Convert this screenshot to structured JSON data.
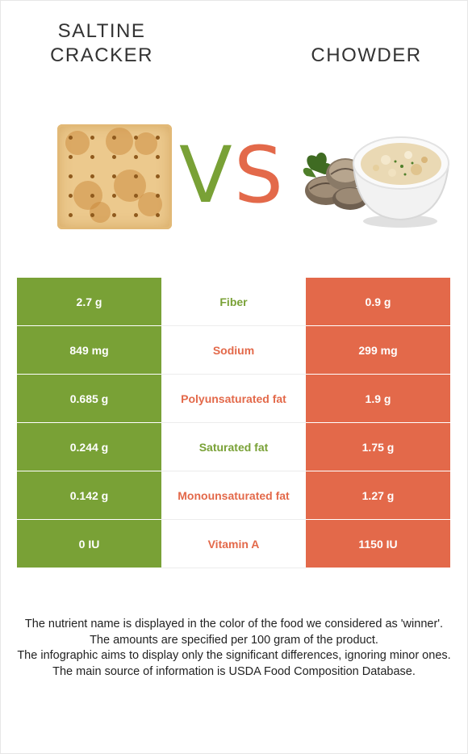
{
  "header": {
    "left_food": "SALTINE CRACKER",
    "left_food_line1": "SALTINE",
    "left_food_line2": "CRACKER",
    "right_food": "CHOWDER",
    "vs_v": "V",
    "vs_s": "S"
  },
  "colors": {
    "left_accent": "#79a136",
    "right_accent": "#e3694a"
  },
  "rows": [
    {
      "left": "2.7 g",
      "nutrient": "Fiber",
      "right": "0.9 g",
      "winner": "left"
    },
    {
      "left": "849 mg",
      "nutrient": "Sodium",
      "right": "299 mg",
      "winner": "right"
    },
    {
      "left": "0.685 g",
      "nutrient": "Polyunsaturated fat",
      "right": "1.9 g",
      "winner": "right"
    },
    {
      "left": "0.244 g",
      "nutrient": "Saturated fat",
      "right": "1.75 g",
      "winner": "left"
    },
    {
      "left": "0.142 g",
      "nutrient": "Monounsaturated fat",
      "right": "1.27 g",
      "winner": "right"
    },
    {
      "left": "0 IU",
      "nutrient": "Vitamin A",
      "right": "1150 IU",
      "winner": "right"
    }
  ],
  "notes": {
    "line1": "The nutrient name is displayed in the color of the food we considered as 'winner'.",
    "line2": "The amounts are specified per 100 gram of the product.",
    "line3": "The infographic aims to display only the significant differences, ignoring minor ones.",
    "line4": "The main source of information is USDA Food Composition Database."
  }
}
